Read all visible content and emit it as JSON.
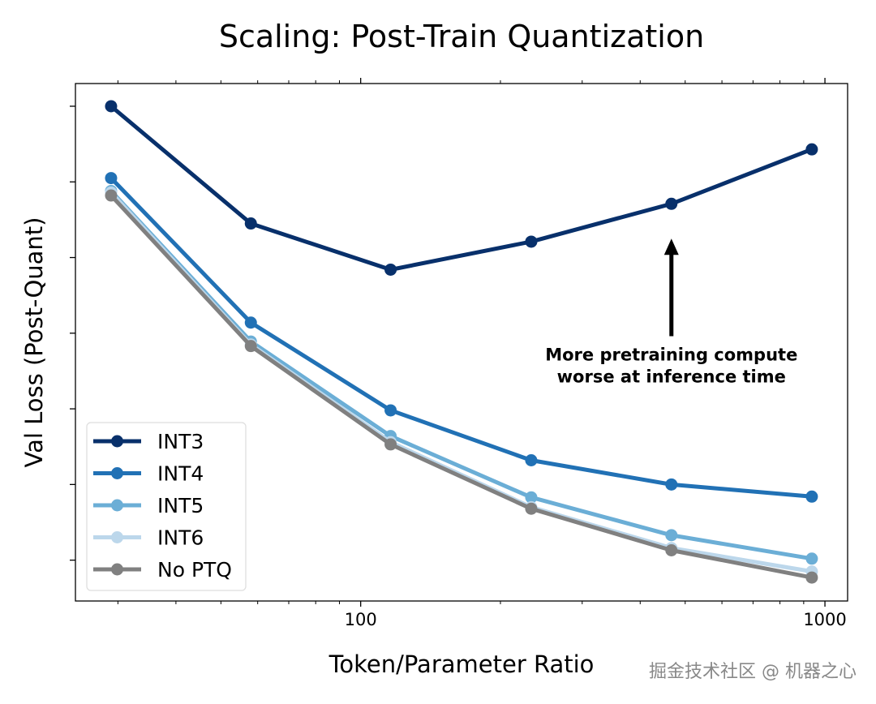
{
  "chart_data": {
    "type": "line",
    "title": "Scaling: Post-Train Quantization",
    "xlabel": "Token/Parameter Ratio",
    "ylabel": "Val Loss (Post-Quant)",
    "xscale": "log",
    "xlim": [
      24.3,
      1119
    ],
    "ylim": [
      -0.54,
      6.3
    ],
    "x_tick_labels": [
      "100",
      "1000"
    ],
    "x_ticks": [
      100,
      1000
    ],
    "y_ticks_unlabeled": [
      0,
      1,
      2,
      3,
      4,
      5,
      6
    ],
    "grid": false,
    "legend_position": "bottom-left",
    "x": [
      29,
      58,
      116,
      233,
      467,
      937
    ],
    "series": [
      {
        "name": "INT3",
        "color": "#08306b",
        "values": [
          6.0,
          4.45,
          3.84,
          4.21,
          4.71,
          5.43
        ]
      },
      {
        "name": "INT4",
        "color": "#2171b5",
        "values": [
          5.05,
          3.14,
          1.98,
          1.32,
          1.0,
          0.84
        ]
      },
      {
        "name": "INT5",
        "color": "#6baed6",
        "values": [
          4.88,
          2.89,
          1.64,
          0.83,
          0.33,
          0.02
        ]
      },
      {
        "name": "INT6",
        "color": "#bcd7eb",
        "values": [
          4.86,
          2.85,
          1.56,
          0.7,
          0.16,
          -0.15
        ]
      },
      {
        "name": "No PTQ",
        "color": "#808080",
        "values": [
          4.82,
          2.83,
          1.53,
          0.68,
          0.13,
          -0.23
        ]
      }
    ],
    "annotation": {
      "lines": [
        "More pretraining compute",
        "worse at inference time"
      ],
      "arrow_target_x": 467,
      "arrow_target_y": 4.25,
      "arrow_base_y": 2.96
    }
  },
  "watermark": "掘金技术社区 @ 机器之心"
}
